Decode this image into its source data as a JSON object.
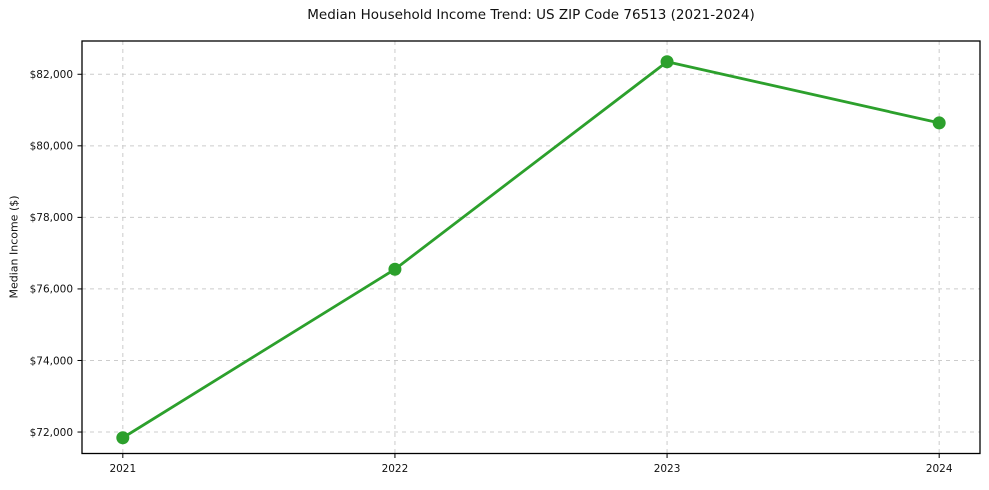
{
  "chart_data": {
    "type": "line",
    "title": "Median Household Income Trend: US ZIP Code 76513 (2021-2024)",
    "xlabel": "",
    "ylabel": "Median Income ($)",
    "x": [
      2021,
      2022,
      2023,
      2024
    ],
    "xtick_labels": [
      "2021",
      "2022",
      "2023",
      "2024"
    ],
    "values": [
      71840,
      76550,
      82350,
      80640
    ],
    "ytick_values": [
      72000,
      74000,
      76000,
      78000,
      80000,
      82000
    ],
    "ytick_labels": [
      "$72,000",
      "$74,000",
      "$76,000",
      "$78,000",
      "$80,000",
      "$82,000"
    ],
    "xlim": [
      2020.85,
      2024.15
    ],
    "ylim": [
      71400,
      82930
    ],
    "grid": true,
    "grid_style": "dashed",
    "legend": false,
    "line_color": "#2ca02c",
    "marker": "circle",
    "grid_color": "#cccccc",
    "spine_color": "#000000",
    "background_color": "#ffffff",
    "text_color": "#111111"
  }
}
